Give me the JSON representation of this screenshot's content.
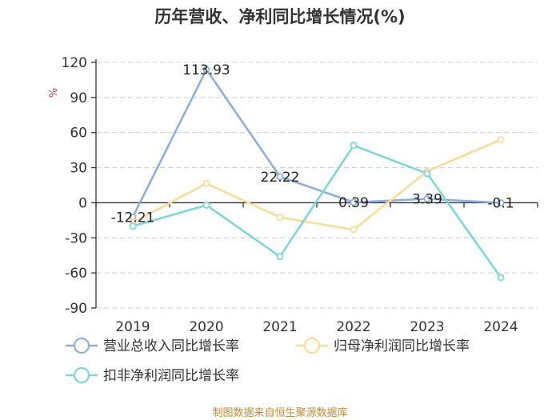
{
  "chart_data": {
    "type": "line",
    "title": "历年营收、净利同比增长情况(%)",
    "ylabel": "%",
    "categories": [
      "2019",
      "2020",
      "2021",
      "2022",
      "2023",
      "2024"
    ],
    "ylim": [
      -90,
      120
    ],
    "yticks": [
      120,
      90,
      60,
      30,
      0,
      -30,
      -60,
      -90
    ],
    "ytick_labels": [
      "120",
      "90",
      "60",
      "30",
      "0",
      "-30",
      "-60",
      "-90"
    ],
    "series": [
      {
        "name": "营业总收入同比增长率",
        "color": "#8eaedb",
        "values": [
          -12.21,
          113.93,
          22.22,
          0.39,
          3.39,
          -0.1
        ],
        "labels": [
          "-12.21",
          "113.93",
          "22.22",
          "0.39",
          "3.39",
          "-0.1"
        ]
      },
      {
        "name": "归母净利润同比增长率",
        "color": "#f9dc9b",
        "values": [
          -17,
          16.5,
          -12.5,
          -23,
          27,
          54
        ]
      },
      {
        "name": "扣非净利润同比增长率",
        "color": "#7fd6d6",
        "values": [
          -20,
          -2,
          -46,
          49,
          25,
          -64
        ]
      }
    ],
    "legend_position": "bottom",
    "grid": true
  },
  "source": "制图数据来自恒生聚源数据库"
}
